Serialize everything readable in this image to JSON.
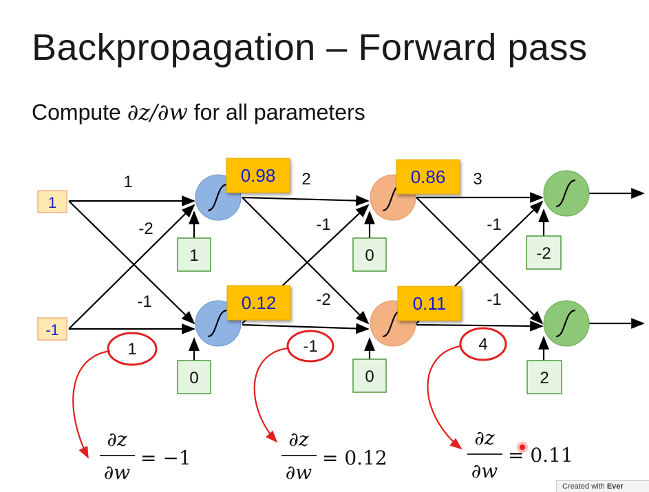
{
  "slide": {
    "title": "Backpropagation – Forward pass",
    "subtitle_prefix": "Compute ",
    "subtitle_math": "∂z/∂w",
    "subtitle_suffix": " for all parameters"
  },
  "inputs": [
    "1",
    "-1"
  ],
  "weights": {
    "layer1": [
      "1",
      "-2",
      "-1"
    ],
    "layer2": [
      "2",
      "-1",
      "-2"
    ],
    "layer3": [
      "3",
      "-1",
      "-1"
    ]
  },
  "biases": {
    "layer1": [
      "1",
      "0"
    ],
    "layer2": [
      "0",
      "0"
    ],
    "layer3": [
      "-2",
      "2"
    ]
  },
  "outputs": {
    "layer1": [
      "0.98",
      "0.12"
    ],
    "layer2": [
      "0.86",
      "0.11"
    ]
  },
  "circled_values": [
    "1",
    "-1",
    "4"
  ],
  "derivatives": [
    {
      "num": "∂z",
      "den": "∂w",
      "eq": "= −1"
    },
    {
      "num": "∂z",
      "den": "∂w",
      "eq": "= 0.12"
    },
    {
      "num": "∂z",
      "den": "∂w",
      "eq": "= 0.11"
    }
  ],
  "badge": {
    "prefix": "Created with ",
    "brand": "Ever"
  },
  "colors": {
    "input_fill": "#fde9b0",
    "input_border": "#f4b183",
    "input_text": "#1f1fd0",
    "layer1_neuron": "#8fb4e3",
    "layer2_neuron": "#f4b183",
    "layer3_neuron": "#8dc878",
    "bias_fill": "#e6f4e2",
    "bias_border": "#4b9a3c",
    "output_fill": "#ffc000",
    "output_text": "#1a1acc",
    "circle_red": "#e02020"
  }
}
